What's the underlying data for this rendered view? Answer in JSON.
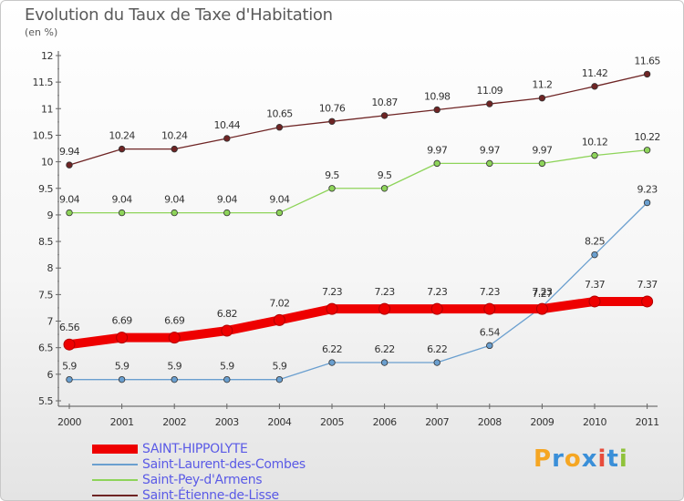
{
  "title": "Evolution du Taux de Taxe d'Habitation",
  "subtitle": "(en %)",
  "logo": {
    "text": "Proxiti",
    "colors": [
      "#f5a623",
      "#3a8fd8",
      "#f5a623",
      "#3a8fd8",
      "#e74c3c",
      "#3a8fd8",
      "#8fc23a"
    ]
  },
  "chart_data": {
    "type": "line",
    "x": [
      "2000",
      "2001",
      "2002",
      "2003",
      "2004",
      "2005",
      "2006",
      "2007",
      "2008",
      "2009",
      "2010",
      "2011"
    ],
    "ylim": [
      5.5,
      12
    ],
    "yticks": [
      "5.5",
      "6",
      "6.5",
      "7",
      "7.5",
      "8",
      "8.5",
      "9",
      "9.5",
      "10",
      "10.5",
      "11",
      "11.5",
      "12"
    ],
    "grid": false,
    "legend_position": "bottom-left",
    "series": [
      {
        "name": "Saint-Étienne-de-Lisse",
        "color": "#6e2424",
        "values": [
          9.94,
          10.24,
          10.24,
          10.44,
          10.65,
          10.76,
          10.87,
          10.98,
          11.09,
          11.2,
          11.42,
          11.65
        ],
        "labels": [
          "9.94",
          "10.24",
          "10.24",
          "10.44",
          "10.65",
          "10.76",
          "10.87",
          "10.98",
          "11.09",
          "11.2",
          "11.42",
          "11.65"
        ]
      },
      {
        "name": "Saint-Pey-d'Armens",
        "color": "#8ed45a",
        "values": [
          9.04,
          9.04,
          9.04,
          9.04,
          9.04,
          9.5,
          9.5,
          9.97,
          9.97,
          9.97,
          10.12,
          10.22
        ],
        "labels": [
          "9.04",
          "9.04",
          "9.04",
          "9.04",
          "9.04",
          "9.5",
          "9.5",
          "9.97",
          "9.97",
          "9.97",
          "10.12",
          "10.22"
        ]
      },
      {
        "name": "Saint-Laurent-des-Combes",
        "color": "#6a9fcf",
        "values": [
          5.9,
          5.9,
          5.9,
          5.9,
          5.9,
          6.22,
          6.22,
          6.22,
          6.54,
          7.27,
          8.25,
          9.23
        ],
        "labels": [
          "5.9",
          "5.9",
          "5.9",
          "5.9",
          "5.9",
          "6.22",
          "6.22",
          "6.22",
          "6.54",
          "7.27",
          "8.25",
          "9.23"
        ]
      },
      {
        "name": "SAINT-HIPPOLYTE",
        "color": "#ee0000",
        "values": [
          6.56,
          6.69,
          6.69,
          6.82,
          7.02,
          7.23,
          7.23,
          7.23,
          7.23,
          7.23,
          7.37,
          7.37
        ],
        "labels": [
          "6.56",
          "6.69",
          "6.69",
          "6.82",
          "7.02",
          "7.23",
          "7.23",
          "7.23",
          "7.23",
          "7.23",
          "7.37",
          "7.37"
        ]
      }
    ],
    "legend": [
      {
        "name": "SAINT-HIPPOLYTE",
        "color": "#ee0000"
      },
      {
        "name": "Saint-Laurent-des-Combes",
        "color": "#6a9fcf"
      },
      {
        "name": "Saint-Pey-d'Armens",
        "color": "#8ed45a"
      },
      {
        "name": "Saint-Étienne-de-Lisse",
        "color": "#6e2424"
      }
    ]
  }
}
